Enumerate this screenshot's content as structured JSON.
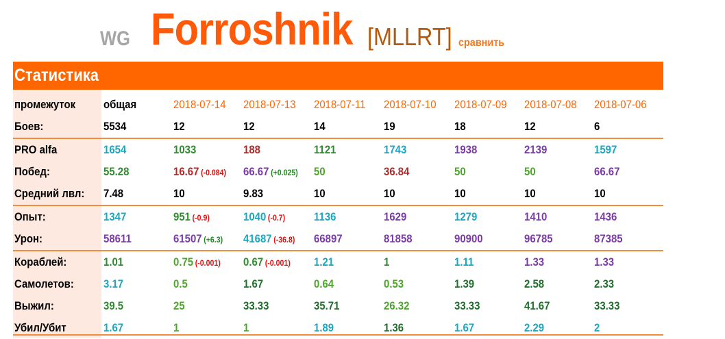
{
  "header": {
    "realm": "WG",
    "nickname": "Forroshnik",
    "clan": "[MLLRT]",
    "compare_link": "сравнить"
  },
  "section": {
    "title": "Статистика"
  },
  "colors": {
    "accent": "#ff6600",
    "teal": "#1ba7c0",
    "green": "#2e8b2e",
    "darkgreen": "#1f6e2b",
    "lime": "#4ca62a",
    "purple": "#7a3aa8",
    "red": "#b02a2a",
    "neg": "#e01010",
    "pos": "#1f8b1f"
  },
  "table": {
    "period_label": "промежуток",
    "periods": [
      "общая",
      "2018-07-14",
      "2018-07-13",
      "2018-07-11",
      "2018-07-10",
      "2018-07-09",
      "2018-07-08",
      "2018-07-06"
    ],
    "rows": [
      {
        "label": "Боев:",
        "cells": [
          {
            "v": "5534",
            "c": "black"
          },
          {
            "v": "12",
            "c": "black"
          },
          {
            "v": "12",
            "c": "black"
          },
          {
            "v": "14",
            "c": "black"
          },
          {
            "v": "19",
            "c": "black"
          },
          {
            "v": "18",
            "c": "black"
          },
          {
            "v": "12",
            "c": "black"
          },
          {
            "v": "6",
            "c": "black"
          }
        ]
      },
      {
        "label": "PRO alfa",
        "sep": true,
        "cells": [
          {
            "v": "1654",
            "c": "teal"
          },
          {
            "v": "1033",
            "c": "green"
          },
          {
            "v": "188",
            "c": "red"
          },
          {
            "v": "1121",
            "c": "green"
          },
          {
            "v": "1743",
            "c": "teal"
          },
          {
            "v": "1938",
            "c": "purple"
          },
          {
            "v": "2139",
            "c": "purple"
          },
          {
            "v": "1597",
            "c": "teal"
          }
        ]
      },
      {
        "label": "Побед:",
        "cells": [
          {
            "v": "55.28",
            "c": "green"
          },
          {
            "v": "16.67",
            "c": "red",
            "d": "(-0.084)",
            "dc": "neg"
          },
          {
            "v": "66.67",
            "c": "purple",
            "d": "(+0.025)",
            "dc": "pos"
          },
          {
            "v": "50",
            "c": "lime"
          },
          {
            "v": "36.84",
            "c": "red"
          },
          {
            "v": "50",
            "c": "lime"
          },
          {
            "v": "50",
            "c": "lime"
          },
          {
            "v": "66.67",
            "c": "purple"
          }
        ]
      },
      {
        "label": "Средний лвл:",
        "cells": [
          {
            "v": "7.48",
            "c": "black"
          },
          {
            "v": "10",
            "c": "black"
          },
          {
            "v": "9.83",
            "c": "black"
          },
          {
            "v": "10",
            "c": "black"
          },
          {
            "v": "10",
            "c": "black"
          },
          {
            "v": "10",
            "c": "black"
          },
          {
            "v": "10",
            "c": "black"
          },
          {
            "v": "10",
            "c": "black"
          }
        ]
      },
      {
        "label": "Опыт:",
        "sep": true,
        "cells": [
          {
            "v": "1347",
            "c": "teal"
          },
          {
            "v": "951",
            "c": "green",
            "d": "(-0.9)",
            "dc": "neg"
          },
          {
            "v": "1040",
            "c": "teal",
            "d": "(-0.7)",
            "dc": "neg"
          },
          {
            "v": "1136",
            "c": "teal"
          },
          {
            "v": "1629",
            "c": "purple"
          },
          {
            "v": "1279",
            "c": "teal"
          },
          {
            "v": "1410",
            "c": "purple"
          },
          {
            "v": "1436",
            "c": "purple"
          }
        ]
      },
      {
        "label": "Урон:",
        "cells": [
          {
            "v": "58611",
            "c": "purple"
          },
          {
            "v": "61507",
            "c": "purple",
            "d": "(+6.3)",
            "dc": "pos"
          },
          {
            "v": "41687",
            "c": "teal",
            "d": "(-36.8)",
            "dc": "neg"
          },
          {
            "v": "66897",
            "c": "purple"
          },
          {
            "v": "81858",
            "c": "purple"
          },
          {
            "v": "90900",
            "c": "purple"
          },
          {
            "v": "96785",
            "c": "purple"
          },
          {
            "v": "87385",
            "c": "purple"
          }
        ]
      },
      {
        "label": "Кораблей:",
        "sep": true,
        "cells": [
          {
            "v": "1.01",
            "c": "green"
          },
          {
            "v": "0.75",
            "c": "lime",
            "d": "(-0.001)",
            "dc": "neg"
          },
          {
            "v": "0.67",
            "c": "green",
            "d": "(-0.001)",
            "dc": "neg"
          },
          {
            "v": "1.21",
            "c": "teal"
          },
          {
            "v": "1",
            "c": "green"
          },
          {
            "v": "1.11",
            "c": "teal"
          },
          {
            "v": "1.33",
            "c": "purple"
          },
          {
            "v": "1.33",
            "c": "purple"
          }
        ]
      },
      {
        "label": "Самолетов:",
        "cells": [
          {
            "v": "3.17",
            "c": "teal"
          },
          {
            "v": "0.5",
            "c": "lime"
          },
          {
            "v": "1.67",
            "c": "darkgreen"
          },
          {
            "v": "0.64",
            "c": "lime"
          },
          {
            "v": "0.53",
            "c": "lime"
          },
          {
            "v": "1.39",
            "c": "darkgreen"
          },
          {
            "v": "2.58",
            "c": "darkgreen"
          },
          {
            "v": "2.33",
            "c": "darkgreen"
          }
        ]
      },
      {
        "label": "Выжил:",
        "cells": [
          {
            "v": "39.5",
            "c": "green"
          },
          {
            "v": "25",
            "c": "lime"
          },
          {
            "v": "33.33",
            "c": "darkgreen"
          },
          {
            "v": "35.71",
            "c": "darkgreen"
          },
          {
            "v": "26.32",
            "c": "lime"
          },
          {
            "v": "33.33",
            "c": "darkgreen"
          },
          {
            "v": "41.67",
            "c": "darkgreen"
          },
          {
            "v": "33.33",
            "c": "darkgreen"
          }
        ]
      },
      {
        "label": "Убил/Убит",
        "cells": [
          {
            "v": "1.67",
            "c": "teal"
          },
          {
            "v": "1",
            "c": "lime"
          },
          {
            "v": "1",
            "c": "lime"
          },
          {
            "v": "1.89",
            "c": "teal"
          },
          {
            "v": "1.36",
            "c": "darkgreen"
          },
          {
            "v": "1.67",
            "c": "teal"
          },
          {
            "v": "2.29",
            "c": "teal"
          },
          {
            "v": "2",
            "c": "teal"
          }
        ]
      }
    ]
  }
}
